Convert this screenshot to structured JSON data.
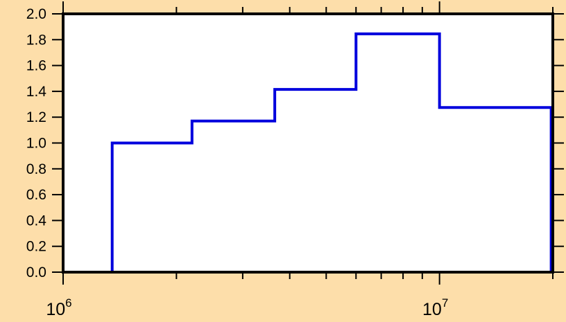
{
  "chart_data": {
    "type": "line",
    "step": true,
    "x_scale": "log",
    "xlim": [
      1000000,
      20000000
    ],
    "ylim": [
      0,
      2.0
    ],
    "y_ticks": [
      "0.0",
      "0.2",
      "0.4",
      "0.6",
      "0.8",
      "1.0",
      "1.2",
      "1.4",
      "1.6",
      "1.8",
      "2.0"
    ],
    "x_tick_labels": [
      {
        "base": "10",
        "exp": "6",
        "value": 1000000
      },
      {
        "base": "10",
        "exp": "7",
        "value": 10000000
      }
    ],
    "grid": false,
    "series": [
      {
        "color": "#0000dd",
        "bins": [
          {
            "x0": 1350000,
            "x1": 2200000,
            "y": 1.0
          },
          {
            "x0": 2200000,
            "x1": 3650000,
            "y": 1.17
          },
          {
            "x0": 3650000,
            "x1": 6000000,
            "y": 1.415
          },
          {
            "x0": 6000000,
            "x1": 10000000,
            "y": 1.845
          },
          {
            "x0": 10000000,
            "x1": 19800000,
            "y": 1.275
          }
        ]
      }
    ],
    "colors": {
      "background": "#fddeaa",
      "plot_area": "#ffffff",
      "axis": "#000000"
    }
  }
}
